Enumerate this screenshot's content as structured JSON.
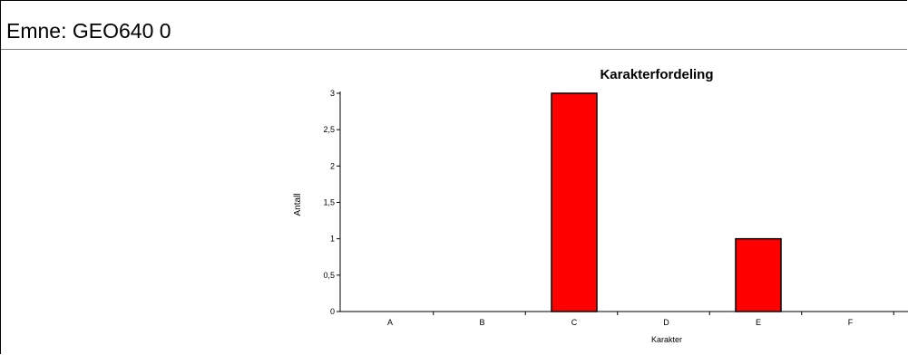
{
  "report": {
    "subject_line": "Emne: GEO640 0"
  },
  "chart_data": {
    "type": "bar",
    "title": "Karakterfordeling",
    "xlabel": "Karakter",
    "ylabel": "Antall",
    "categories": [
      "A",
      "B",
      "C",
      "D",
      "E",
      "F"
    ],
    "values": [
      0,
      0,
      3,
      0,
      1,
      0
    ],
    "ylim": [
      0,
      3
    ],
    "yticks": [
      "0",
      "0,5",
      "1",
      "1,5",
      "2",
      "2,5",
      "3"
    ],
    "bar_color": "#ff0000",
    "grid": false,
    "legend": "none"
  }
}
